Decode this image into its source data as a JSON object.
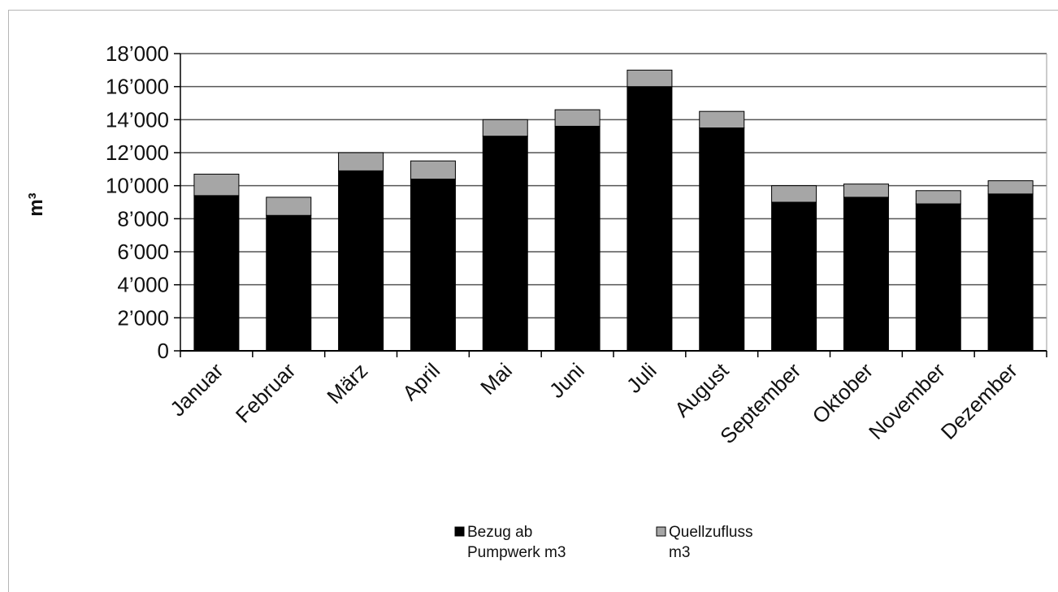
{
  "chart_data": {
    "type": "bar",
    "stacked": true,
    "categories": [
      "Januar",
      "Februar",
      "März",
      "April",
      "Mai",
      "Juni",
      "Juli",
      "August",
      "September",
      "Oktober",
      "November",
      "Dezember"
    ],
    "series": [
      {
        "name": "Bezug ab Pumpwerk m3",
        "name_lines": [
          "Bezug ab",
          "Pumpwerk m3"
        ],
        "color": "#000000",
        "values": [
          9400,
          8200,
          10900,
          10400,
          13000,
          13600,
          16000,
          13500,
          9000,
          9300,
          8900,
          9500
        ]
      },
      {
        "name": "Quellzufluss m3",
        "name_lines": [
          "Quellzufluss",
          "m3"
        ],
        "color": "#a6a6a6",
        "values": [
          1300,
          1100,
          1100,
          1100,
          1000,
          1000,
          1000,
          1000,
          1000,
          800,
          800,
          800
        ]
      }
    ],
    "ylabel": "m³",
    "ylim": [
      0,
      18000
    ],
    "yticks": [
      0,
      2000,
      4000,
      6000,
      8000,
      10000,
      12000,
      14000,
      16000,
      18000
    ],
    "ytick_labels": [
      "0",
      "2’000",
      "4’000",
      "6’000",
      "8’000",
      "10’000",
      "12’000",
      "14’000",
      "16’000",
      "18’000"
    ],
    "grid": true,
    "legend_position": "bottom"
  }
}
